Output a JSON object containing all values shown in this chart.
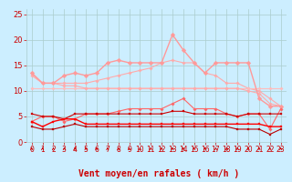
{
  "bg_color": "#cceeff",
  "grid_color": "#aacccc",
  "xlabel": "Vent moyen/en rafales ( km/h )",
  "x": [
    0,
    1,
    2,
    3,
    4,
    5,
    6,
    7,
    8,
    9,
    10,
    11,
    12,
    13,
    14,
    15,
    16,
    17,
    18,
    19,
    20,
    21,
    22,
    23
  ],
  "ylim": [
    0,
    26
  ],
  "yticks": [
    0,
    5,
    10,
    15,
    20,
    25
  ],
  "lines": [
    {
      "color": "#ffaaaa",
      "marker": "D",
      "markersize": 1.8,
      "linewidth": 0.8,
      "values": [
        13.5,
        11.5,
        11.5,
        11.5,
        11.5,
        11.5,
        12.0,
        12.5,
        13.0,
        13.5,
        14.0,
        14.5,
        15.5,
        16.0,
        15.5,
        15.5,
        13.5,
        13.0,
        11.5,
        11.5,
        10.5,
        10.0,
        8.5,
        7.0
      ]
    },
    {
      "color": "#ffbbbb",
      "marker": "D",
      "markersize": 1.8,
      "linewidth": 0.8,
      "values": [
        10.5,
        10.5,
        10.5,
        10.5,
        10.5,
        10.5,
        10.5,
        10.5,
        10.5,
        10.5,
        10.5,
        10.5,
        10.5,
        10.5,
        10.5,
        10.5,
        10.5,
        10.5,
        10.5,
        10.5,
        10.5,
        10.5,
        10.5,
        10.5
      ]
    },
    {
      "color": "#ffaaaa",
      "marker": "D",
      "markersize": 1.8,
      "linewidth": 0.8,
      "values": [
        13.0,
        11.5,
        11.5,
        11.0,
        11.0,
        10.5,
        10.5,
        10.5,
        10.5,
        10.5,
        10.5,
        10.5,
        10.5,
        10.5,
        10.5,
        10.5,
        10.5,
        10.5,
        10.5,
        10.5,
        10.0,
        9.5,
        7.5,
        7.0
      ]
    },
    {
      "color": "#ff9999",
      "marker": "D",
      "markersize": 2.5,
      "linewidth": 1.0,
      "values": [
        13.5,
        11.5,
        11.5,
        13.0,
        13.5,
        13.0,
        13.5,
        15.5,
        16.0,
        15.5,
        15.5,
        15.5,
        15.5,
        21.0,
        18.0,
        15.5,
        13.5,
        15.5,
        15.5,
        15.5,
        15.5,
        8.5,
        7.0,
        7.0
      ]
    },
    {
      "color": "#ff6666",
      "marker": "D",
      "markersize": 1.8,
      "linewidth": 0.8,
      "values": [
        4.0,
        5.0,
        5.0,
        4.0,
        4.5,
        5.5,
        5.5,
        5.5,
        6.0,
        6.5,
        6.5,
        6.5,
        6.5,
        7.5,
        8.5,
        6.5,
        6.5,
        6.5,
        5.5,
        5.0,
        5.5,
        5.5,
        2.5,
        6.5
      ]
    },
    {
      "color": "#cc0000",
      "marker": "s",
      "markersize": 1.8,
      "linewidth": 0.8,
      "values": [
        5.5,
        5.0,
        5.0,
        4.5,
        5.5,
        5.5,
        5.5,
        5.5,
        5.5,
        5.5,
        5.5,
        5.5,
        5.5,
        6.0,
        6.0,
        5.5,
        5.5,
        5.5,
        5.5,
        5.0,
        5.5,
        5.5,
        5.5,
        5.5
      ]
    },
    {
      "color": "#ff0000",
      "marker": "s",
      "markersize": 1.8,
      "linewidth": 1.0,
      "values": [
        4.0,
        3.0,
        4.0,
        4.5,
        4.5,
        3.5,
        3.5,
        3.5,
        3.5,
        3.5,
        3.5,
        3.5,
        3.5,
        3.5,
        3.5,
        3.5,
        3.5,
        3.5,
        3.5,
        3.5,
        3.5,
        3.5,
        3.0,
        3.0
      ]
    },
    {
      "color": "#bb0000",
      "marker": "s",
      "markersize": 1.8,
      "linewidth": 0.8,
      "values": [
        3.0,
        2.5,
        2.5,
        3.0,
        3.5,
        3.0,
        3.0,
        3.0,
        3.0,
        3.0,
        3.0,
        3.0,
        3.0,
        3.0,
        3.0,
        3.0,
        3.0,
        3.0,
        3.0,
        2.5,
        2.5,
        2.5,
        1.5,
        2.5
      ]
    }
  ],
  "arrow_color": "#cc0000",
  "xlabel_color": "#cc0000",
  "xlabel_fontsize": 7,
  "tick_color": "#cc0000",
  "tick_fontsize": 5.5,
  "ytick_fontsize": 6
}
